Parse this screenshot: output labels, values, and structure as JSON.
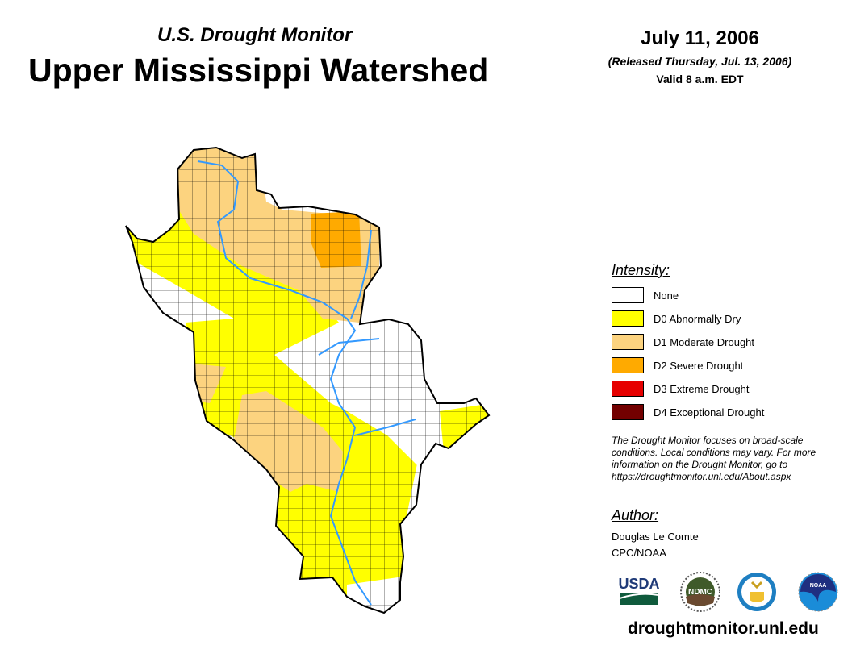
{
  "header": {
    "subtitle": "U.S. Drought Monitor",
    "title": "Upper Mississippi Watershed",
    "date": "July 11, 2006",
    "released": "(Released Thursday, Jul. 13, 2006)",
    "valid": "Valid 8 a.m. EDT"
  },
  "legend": {
    "title": "Intensity:",
    "items": [
      {
        "label": "None",
        "color": "#ffffff"
      },
      {
        "label": "D0 Abnormally Dry",
        "color": "#ffff00"
      },
      {
        "label": "D1 Moderate Drought",
        "color": "#fcd37f"
      },
      {
        "label": "D2 Severe Drought",
        "color": "#ffaa00"
      },
      {
        "label": "D3 Extreme Drought",
        "color": "#e60000"
      },
      {
        "label": "D4 Exceptional Drought",
        "color": "#730000"
      }
    ]
  },
  "note": "The Drought Monitor focuses on broad-scale conditions. Local conditions may vary. For more information on the Drought Monitor, go to https://droughtmonitor.unl.edu/About.aspx",
  "author": {
    "title": "Author:",
    "name": "Douglas Le Comte",
    "org": "CPC/NOAA"
  },
  "logos": [
    {
      "name": "USDA",
      "icon": "usda-logo"
    },
    {
      "name": "NDMC",
      "icon": "ndmc-logo"
    },
    {
      "name": "Department of Commerce",
      "icon": "doc-seal"
    },
    {
      "name": "NOAA",
      "icon": "noaa-logo"
    }
  ],
  "footer": {
    "url": "droughtmonitor.unl.edu"
  }
}
